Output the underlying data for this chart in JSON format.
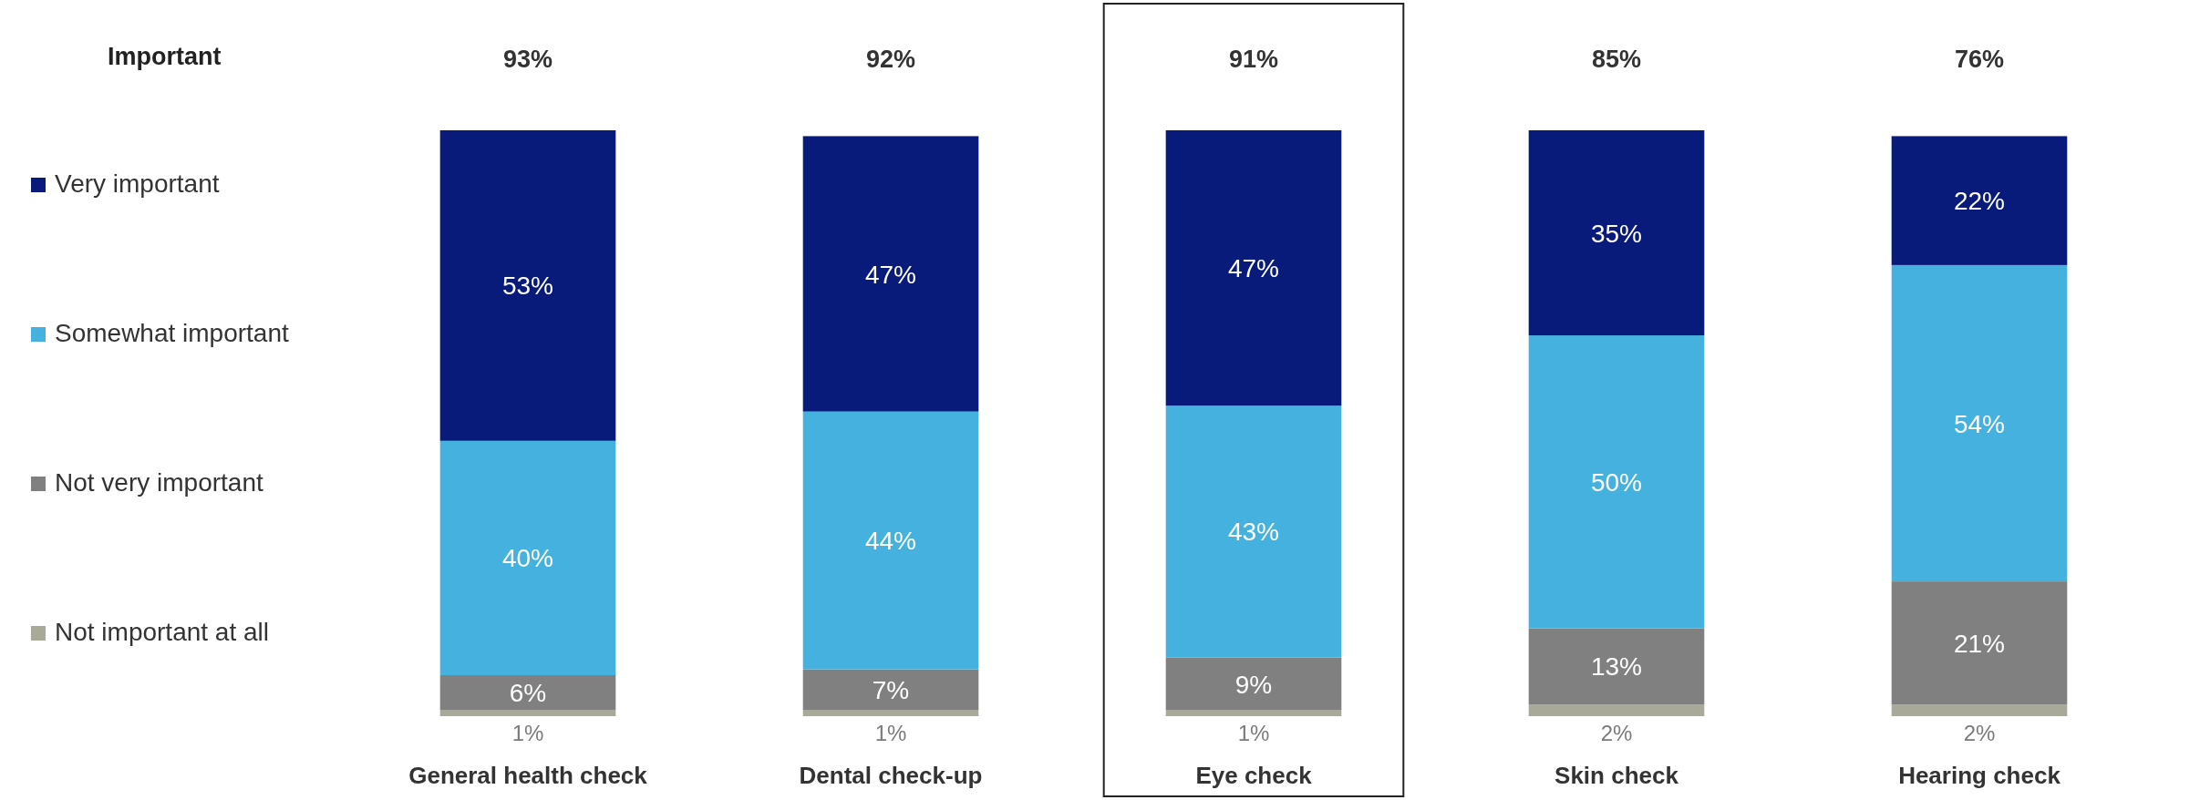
{
  "chart_data": {
    "type": "bar",
    "stacked": true,
    "categories": [
      "General health check",
      "Dental check-up",
      "Eye check",
      "Skin check",
      "Hearing check"
    ],
    "series": [
      {
        "name": "Not important at all",
        "color": "#a8a999",
        "values": [
          1,
          1,
          1,
          2,
          2
        ],
        "value_labels": [
          "1%",
          "1%",
          "1%",
          "2%",
          "2%"
        ]
      },
      {
        "name": "Not very important",
        "color": "#808080",
        "values": [
          6,
          7,
          9,
          13,
          21
        ],
        "value_labels": [
          "6%",
          "7%",
          "9%",
          "13%",
          "21%"
        ]
      },
      {
        "name": "Somewhat important",
        "color": "#45b1de",
        "values": [
          40,
          44,
          43,
          50,
          54
        ],
        "value_labels": [
          "40%",
          "44%",
          "43%",
          "50%",
          "54%"
        ]
      },
      {
        "name": "Very important",
        "color": "#081a7a",
        "values": [
          53,
          47,
          47,
          35,
          22
        ],
        "value_labels": [
          "53%",
          "47%",
          "47%",
          "35%",
          "22%"
        ]
      }
    ],
    "tick_labels": "x",
    "legend": "left",
    "annotations": [
      "Important",
      "93%",
      "92%",
      "91%",
      "85%",
      "76%"
    ]
  }
}
